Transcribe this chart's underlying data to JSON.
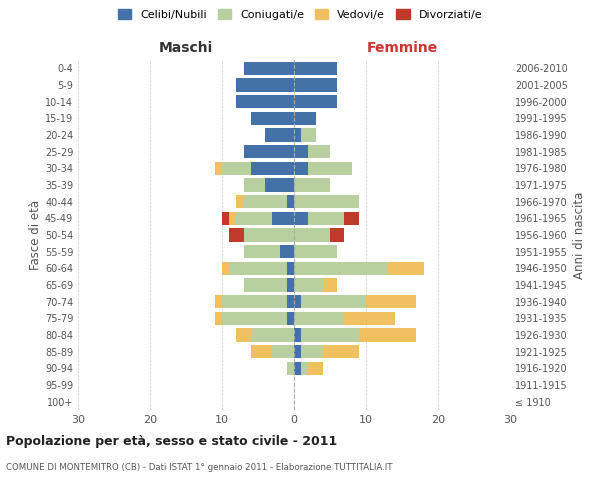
{
  "age_groups": [
    "100+",
    "95-99",
    "90-94",
    "85-89",
    "80-84",
    "75-79",
    "70-74",
    "65-69",
    "60-64",
    "55-59",
    "50-54",
    "45-49",
    "40-44",
    "35-39",
    "30-34",
    "25-29",
    "20-24",
    "15-19",
    "10-14",
    "5-9",
    "0-4"
  ],
  "birth_years": [
    "≤ 1910",
    "1911-1915",
    "1916-1920",
    "1921-1925",
    "1926-1930",
    "1931-1935",
    "1936-1940",
    "1941-1945",
    "1946-1950",
    "1951-1955",
    "1956-1960",
    "1961-1965",
    "1966-1970",
    "1971-1975",
    "1976-1980",
    "1981-1985",
    "1986-1990",
    "1991-1995",
    "1996-2000",
    "2001-2005",
    "2006-2010"
  ],
  "maschi": {
    "celibi": [
      0,
      0,
      0,
      0,
      0,
      1,
      1,
      1,
      1,
      2,
      0,
      3,
      1,
      4,
      6,
      7,
      4,
      6,
      8,
      8,
      7
    ],
    "coniugati": [
      0,
      0,
      1,
      3,
      6,
      9,
      9,
      6,
      8,
      5,
      7,
      5,
      6,
      3,
      4,
      0,
      0,
      0,
      0,
      0,
      0
    ],
    "vedovi": [
      0,
      0,
      0,
      3,
      2,
      1,
      1,
      0,
      1,
      0,
      0,
      1,
      1,
      0,
      1,
      0,
      0,
      0,
      0,
      0,
      0
    ],
    "divorziati": [
      0,
      0,
      0,
      0,
      0,
      0,
      0,
      0,
      0,
      0,
      2,
      1,
      0,
      0,
      0,
      0,
      0,
      0,
      0,
      0,
      0
    ]
  },
  "femmine": {
    "nubili": [
      0,
      0,
      1,
      1,
      1,
      0,
      1,
      0,
      0,
      0,
      0,
      2,
      0,
      0,
      2,
      2,
      1,
      3,
      6,
      6,
      6
    ],
    "coniugate": [
      0,
      0,
      1,
      3,
      8,
      7,
      9,
      4,
      13,
      6,
      5,
      5,
      9,
      5,
      6,
      3,
      2,
      0,
      0,
      0,
      0
    ],
    "vedove": [
      0,
      0,
      2,
      5,
      8,
      7,
      7,
      2,
      5,
      0,
      0,
      0,
      0,
      0,
      0,
      0,
      0,
      0,
      0,
      0,
      0
    ],
    "divorziate": [
      0,
      0,
      0,
      0,
      0,
      0,
      0,
      0,
      0,
      0,
      2,
      2,
      0,
      0,
      0,
      0,
      0,
      0,
      0,
      0,
      0
    ]
  },
  "colors": {
    "celibi": "#4472a8",
    "coniugati": "#b8cfa0",
    "vedovi": "#f0c060",
    "divorziati": "#c0392b"
  },
  "title": "Popolazione per età, sesso e stato civile - 2011",
  "subtitle": "COMUNE DI MONTEMITRO (CB) - Dati ISTAT 1° gennaio 2011 - Elaborazione TUTTITALIA.IT",
  "xlabel_left": "Maschi",
  "xlabel_right": "Femmine",
  "ylabel_left": "Fasce di età",
  "ylabel_right": "Anni di nascita",
  "xlim": 30,
  "legend_labels": [
    "Celibi/Nubili",
    "Coniugati/e",
    "Vedovi/e",
    "Divorziati/e"
  ],
  "background_color": "#ffffff",
  "maschi_label_color": "#333333",
  "femmine_label_color": "#cc3333"
}
